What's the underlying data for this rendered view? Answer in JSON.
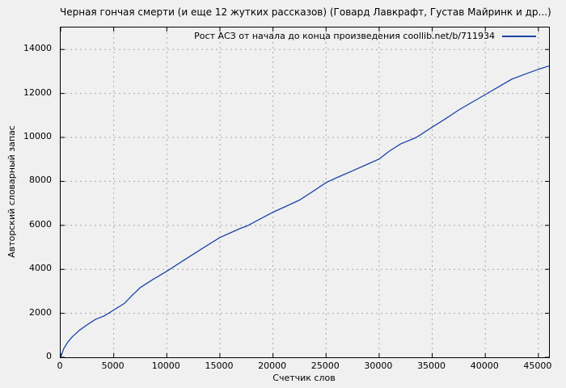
{
  "page": {
    "background": "#f0f0f0"
  },
  "chart_data": {
    "type": "line",
    "title": "Черная гончая смерти (и еще 12 жутких рассказов) (Говард Лавкрафт, Густав Майринк и др...)",
    "xlabel": "Счетчик слов",
    "ylabel": "Авторский словарный запас",
    "x_range": [
      0,
      46000
    ],
    "y_range": [
      0,
      15000
    ],
    "xticks": [
      0,
      5000,
      10000,
      15000,
      20000,
      25000,
      30000,
      35000,
      40000,
      45000
    ],
    "yticks": [
      0,
      2000,
      4000,
      6000,
      8000,
      10000,
      12000,
      14000
    ],
    "grid": true,
    "grid_color": "#a8a8a8",
    "frame_color": "#000000",
    "legend_position": "top-right-inside",
    "legend": {
      "label": "Рост АСЗ от начала до конца произведения coollib.net/b/711934",
      "line_color": "#1a44a8"
    },
    "series": [
      {
        "name": "Рост АСЗ от начала до конца произведения coollib.net/b/711934",
        "color": "#1a44a8",
        "points": [
          [
            0,
            0
          ],
          [
            300,
            400
          ],
          [
            700,
            710
          ],
          [
            1100,
            930
          ],
          [
            1500,
            1110
          ],
          [
            1800,
            1240
          ],
          [
            2600,
            1510
          ],
          [
            3300,
            1730
          ],
          [
            4100,
            1880
          ],
          [
            4600,
            2030
          ],
          [
            5000,
            2150
          ],
          [
            6000,
            2450
          ],
          [
            6700,
            2800
          ],
          [
            7500,
            3170
          ],
          [
            8700,
            3540
          ],
          [
            10000,
            3910
          ],
          [
            11200,
            4290
          ],
          [
            12500,
            4690
          ],
          [
            13700,
            5060
          ],
          [
            15000,
            5450
          ],
          [
            15800,
            5620
          ],
          [
            17000,
            5880
          ],
          [
            17500,
            5960
          ],
          [
            18750,
            6280
          ],
          [
            20000,
            6600
          ],
          [
            21250,
            6870
          ],
          [
            22500,
            7150
          ],
          [
            23750,
            7540
          ],
          [
            25000,
            7950
          ],
          [
            26250,
            8220
          ],
          [
            27500,
            8480
          ],
          [
            28750,
            8750
          ],
          [
            30000,
            9020
          ],
          [
            31000,
            9390
          ],
          [
            32000,
            9700
          ],
          [
            33500,
            10000
          ],
          [
            35000,
            10470
          ],
          [
            36250,
            10850
          ],
          [
            37500,
            11250
          ],
          [
            38750,
            11600
          ],
          [
            40000,
            11950
          ],
          [
            41250,
            12300
          ],
          [
            42500,
            12650
          ],
          [
            43750,
            12880
          ],
          [
            45000,
            13100
          ],
          [
            46000,
            13250
          ]
        ]
      }
    ]
  }
}
